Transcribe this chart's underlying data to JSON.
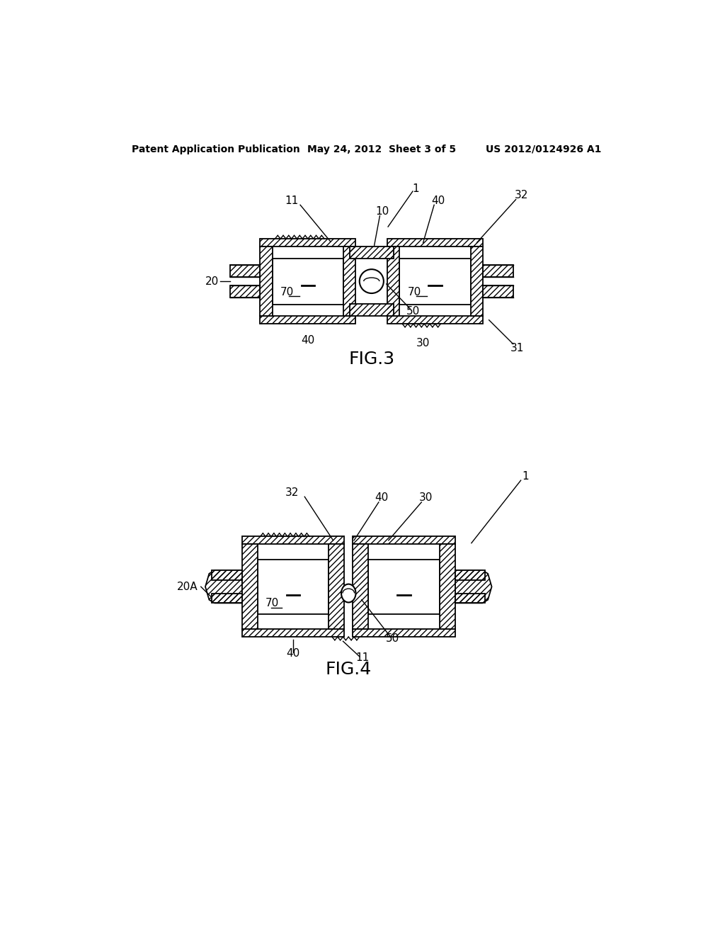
{
  "bg_color": "#ffffff",
  "header_left": "Patent Application Publication",
  "header_center": "May 24, 2012  Sheet 3 of 5",
  "header_right": "US 2012/0124926 A1",
  "fig3_label": "FIG.3",
  "fig4_label": "FIG.4"
}
